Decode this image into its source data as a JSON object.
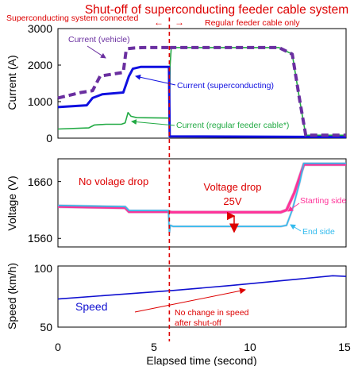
{
  "title": "Shut-off of superconducting feeder cable system",
  "phases": {
    "left": "Superconducting system connected",
    "left_arrow": "←",
    "right_arrow": "→",
    "right": "Regular feeder cable only"
  },
  "xaxis": {
    "label": "Elapsed time (second)",
    "ticks": [
      "0",
      "5",
      "10",
      "15"
    ]
  },
  "colors": {
    "current_vehicle": "#6a2fa0",
    "current_superconducting": "#1010e0",
    "current_regular": "#22aa44",
    "voltage_start": "#ff3399",
    "voltage_end": "#33bbee",
    "speed": "#1010d0",
    "shutoff_line": "#dd0000",
    "annotation_red": "#dd0000",
    "frame": "#000000"
  },
  "chart_data": [
    {
      "type": "line",
      "ylabel": "Current (A)",
      "ylim": [
        0,
        3000
      ],
      "yticks": [
        "0",
        "1000",
        "2000",
        "3000"
      ],
      "xlim": [
        0,
        15
      ],
      "shutoff_time": 5.8,
      "series": [
        {
          "name": "Current (vehicle)",
          "style": "dashed",
          "x": [
            0,
            1.2,
            1.8,
            2.2,
            3.4,
            3.55,
            3.65,
            4.0,
            4.5,
            5.8,
            5.82,
            5.88,
            6.4,
            11.5,
            12.2,
            12.6,
            12.9,
            15
          ],
          "y": [
            1100,
            1250,
            1300,
            1700,
            1800,
            2400,
            2450,
            2470,
            2480,
            2480,
            2420,
            2480,
            2480,
            2480,
            2300,
            1000,
            80,
            80
          ]
        },
        {
          "name": "Current (superconducting)",
          "style": "solid",
          "x": [
            0,
            1.5,
            1.8,
            2.3,
            3.4,
            3.7,
            3.9,
            4.3,
            5.78,
            5.82,
            15
          ],
          "y": [
            850,
            900,
            1100,
            1200,
            1250,
            1700,
            1900,
            1950,
            1950,
            50,
            30
          ]
        },
        {
          "name": "Current (regular feeder cable*)",
          "style": "solid",
          "x": [
            0,
            1.6,
            1.9,
            2.5,
            3.3,
            3.5,
            3.65,
            3.8,
            4.1,
            5.78,
            5.8,
            5.84,
            5.9,
            6.3,
            11.5,
            12.2,
            12.6,
            12.9,
            15
          ],
          "y": [
            250,
            280,
            360,
            380,
            380,
            420,
            700,
            600,
            560,
            550,
            300,
            2000,
            2480,
            2480,
            2480,
            2300,
            1000,
            80,
            80
          ]
        }
      ],
      "annotations": {
        "vehicle": "Current (vehicle)",
        "superconducting": "Current (superconducting)",
        "regular": "Current (regular feeder cable*)"
      }
    },
    {
      "type": "line",
      "ylabel": "Voltage (V)",
      "ylim": [
        1545,
        1700
      ],
      "yticks": [
        "1560",
        "1660"
      ],
      "yticks_at": [
        1560,
        1660
      ],
      "xlim": [
        0,
        15
      ],
      "shutoff_time": 5.8,
      "series": [
        {
          "name": "Starting side",
          "x": [
            0,
            3.5,
            3.7,
            5.8,
            5.9,
            11.6,
            11.9,
            12.3,
            12.8,
            15
          ],
          "y": [
            1616,
            1614,
            1607,
            1607,
            1606,
            1606,
            1610,
            1640,
            1690,
            1690
          ]
        },
        {
          "name": "End side",
          "x": [
            0,
            3.5,
            3.7,
            5.75,
            5.8,
            5.85,
            6.0,
            11.6,
            11.9,
            12.2,
            12.6,
            12.8,
            15
          ],
          "y": [
            1618,
            1616,
            1609,
            1609,
            1570,
            1583,
            1581,
            1581,
            1583,
            1610,
            1660,
            1692,
            1692
          ]
        }
      ],
      "annotations": {
        "no_drop": "No volage drop",
        "drop_title": "Voltage drop",
        "drop_value": "25V",
        "start": "Starting side",
        "end": "End side"
      }
    },
    {
      "type": "line",
      "ylabel": "Speed (km/h)",
      "ylim": [
        50,
        100
      ],
      "yticks": [
        "50",
        "100"
      ],
      "xlim": [
        0,
        15
      ],
      "shutoff_time": 5.8,
      "series": [
        {
          "name": "Speed",
          "x": [
            0,
            3,
            6,
            9,
            12,
            14.3,
            15
          ],
          "y": [
            73,
            76.5,
            80,
            84,
            88.5,
            92,
            91.5
          ]
        }
      ],
      "annotations": {
        "speed": "Speed",
        "note_line1": "No change in speed",
        "note_line2": "after shut-off"
      }
    }
  ]
}
